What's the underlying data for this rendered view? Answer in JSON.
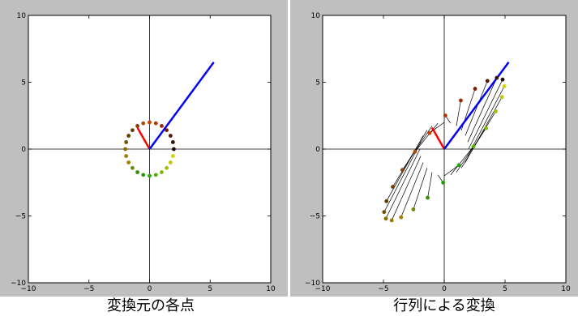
{
  "captions": {
    "left": "変換元の各点",
    "right": "行列による変換"
  },
  "chart_data": [
    {
      "type": "scatter",
      "title": "",
      "xlabel": "",
      "ylabel": "",
      "xlim": [
        -10,
        10
      ],
      "ylim": [
        -10,
        10
      ],
      "x_ticks": [
        "−10",
        "−5",
        "0",
        "5",
        "10"
      ],
      "y_ticks": [
        "10",
        "5",
        "0",
        "−5",
        "−10"
      ],
      "grid": false,
      "axis_lines_at_zero": true,
      "vectors": [
        {
          "color": "#ff0000",
          "from": [
            0,
            0
          ],
          "to": [
            -1.0,
            1.6
          ]
        },
        {
          "color": "#0000ff",
          "from": [
            0,
            0
          ],
          "to": [
            5.3,
            6.5
          ]
        }
      ],
      "points_note": "24 points on a circle of radius 2, colored from dark red/brown through orange, green to yellow",
      "points": [
        [
          2.0,
          0.0
        ],
        [
          1.93,
          0.52
        ],
        [
          1.73,
          1.0
        ],
        [
          1.41,
          1.41
        ],
        [
          1.0,
          1.73
        ],
        [
          0.52,
          1.93
        ],
        [
          0.0,
          2.0
        ],
        [
          -0.52,
          1.93
        ],
        [
          -1.0,
          1.73
        ],
        [
          -1.41,
          1.41
        ],
        [
          -1.73,
          1.0
        ],
        [
          -1.93,
          0.52
        ],
        [
          -2.0,
          0.0
        ],
        [
          -1.93,
          -0.52
        ],
        [
          -1.73,
          -1.0
        ],
        [
          -1.41,
          -1.41
        ],
        [
          -1.0,
          -1.73
        ],
        [
          -0.52,
          -1.93
        ],
        [
          0.0,
          -2.0
        ],
        [
          0.52,
          -1.93
        ],
        [
          1.0,
          -1.73
        ],
        [
          1.41,
          -1.41
        ],
        [
          1.73,
          -1.0
        ],
        [
          1.93,
          -0.52
        ]
      ],
      "point_colors": [
        "#1a0500",
        "#3b0f00",
        "#5a1600",
        "#7a2000",
        "#9a2a00",
        "#b83600",
        "#c84000",
        "#b04a00",
        "#8a3a00",
        "#6a3a00",
        "#5a4000",
        "#6a5000",
        "#8a6a00",
        "#9a7a00",
        "#a08000",
        "#6a8a00",
        "#3a9000",
        "#20a000",
        "#28a810",
        "#50b000",
        "#80b800",
        "#a0c000",
        "#c0c800",
        "#d8d000"
      ]
    },
    {
      "type": "scatter",
      "title": "",
      "xlabel": "",
      "ylabel": "",
      "xlim": [
        -10,
        10
      ],
      "ylim": [
        -10,
        10
      ],
      "x_ticks": [
        "−10",
        "−5",
        "0",
        "5",
        "10"
      ],
      "y_ticks": [
        "10",
        "5",
        "0",
        "−5",
        "−10"
      ],
      "grid": false,
      "axis_lines_at_zero": true,
      "vectors": [
        {
          "color": "#ff0000",
          "from": [
            0,
            0
          ],
          "to": [
            -1.0,
            1.6
          ]
        },
        {
          "color": "#0000ff",
          "from": [
            0,
            0
          ],
          "to": [
            5.3,
            6.5
          ]
        }
      ],
      "transform_matrix": [
        [
          2.4,
          -0.6
        ],
        [
          2.6,
          0.6
        ]
      ],
      "points_note": "each source point on the radius-2 circle mapped by the matrix; black line from source to image"
    }
  ]
}
